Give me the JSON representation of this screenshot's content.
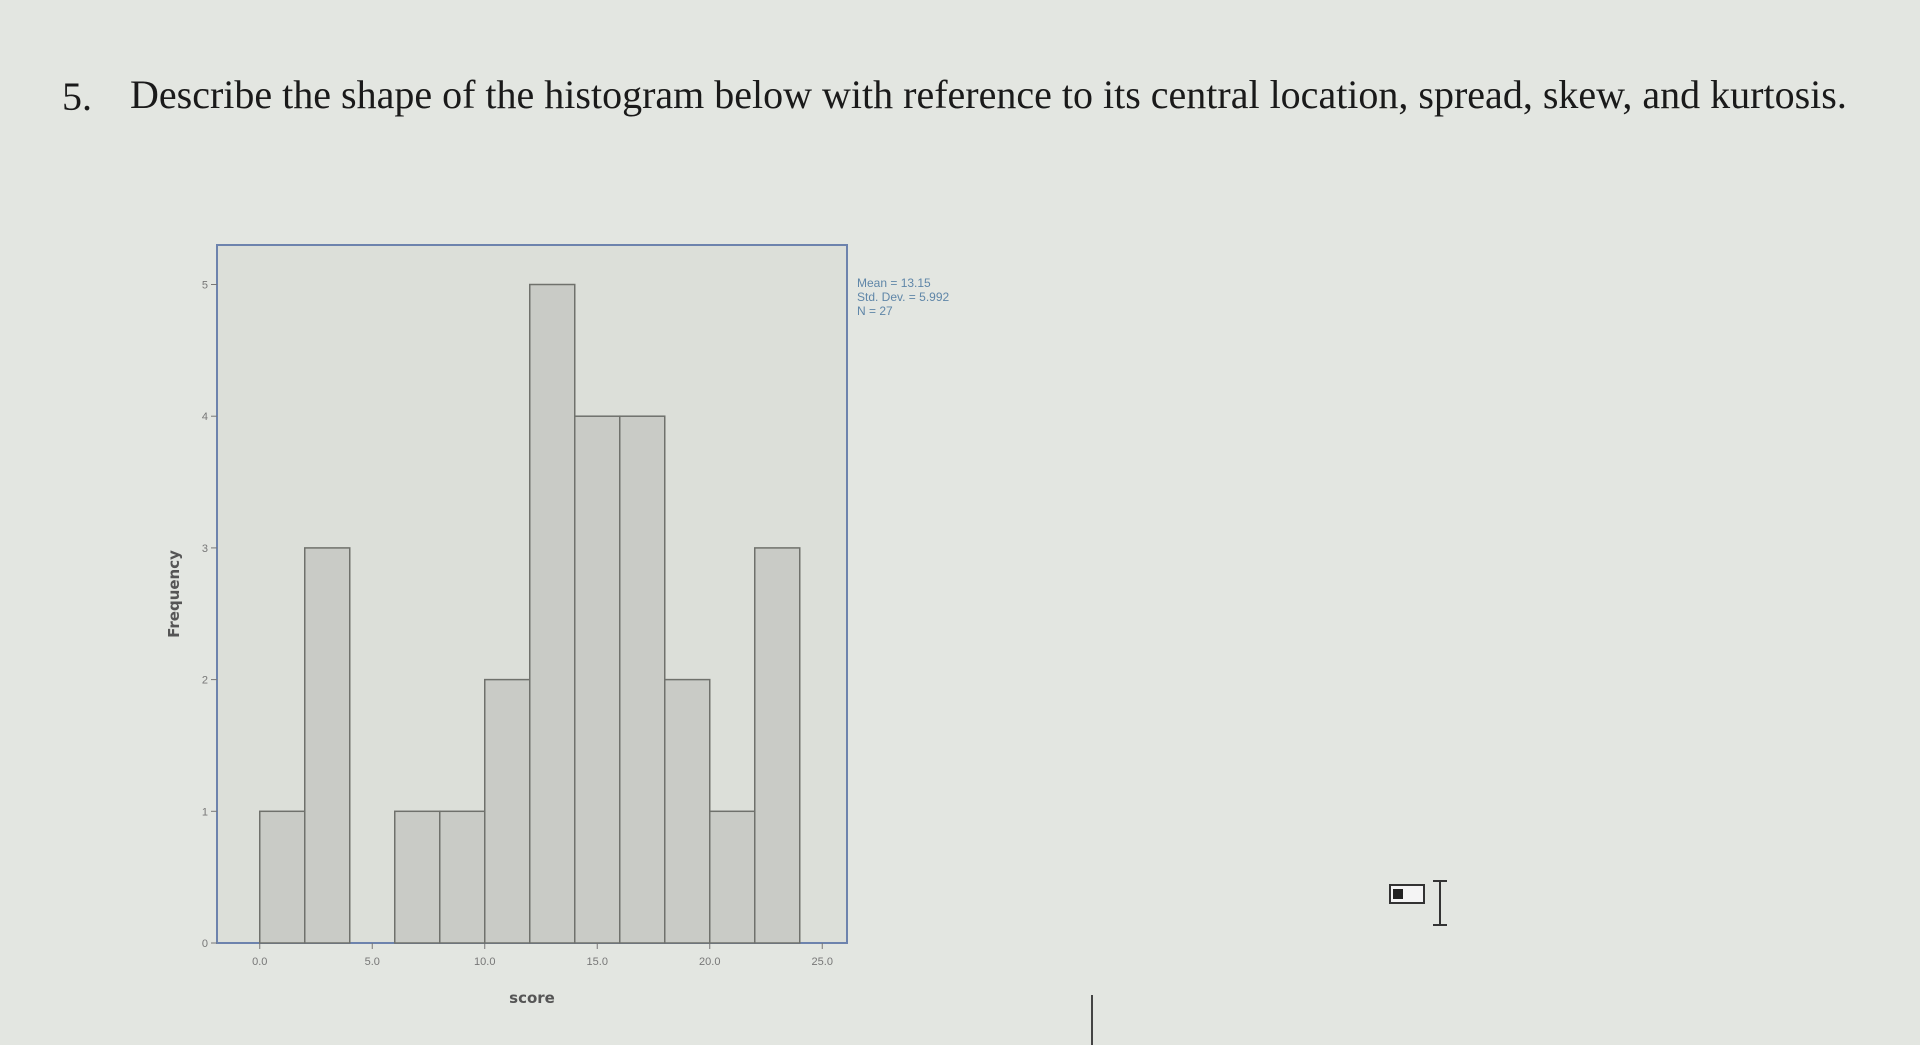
{
  "question": {
    "number": "5.",
    "text": "Describe the shape of the histogram below with reference to its central location, spread, skew, and kurtosis."
  },
  "chart_data": {
    "type": "histogram",
    "x_label": "score",
    "y_label": "Frequency",
    "annotations": [
      "Mean = 13.15",
      "Std. Dev. = 5.992",
      "N = 27"
    ],
    "bins": [
      0,
      2,
      4,
      6,
      8,
      10,
      12,
      14,
      16,
      18,
      20,
      22,
      24
    ],
    "counts": [
      1,
      3,
      0,
      1,
      1,
      2,
      5,
      4,
      4,
      2,
      1,
      3
    ],
    "color": "#c9cbc6",
    "xlim": [
      -1.9,
      26.1
    ],
    "xticks": [
      {
        "value": 0,
        "label": "0.0"
      },
      {
        "value": 5,
        "label": "5.0"
      },
      {
        "value": 10,
        "label": "10.0"
      },
      {
        "value": 15,
        "label": "15.0"
      },
      {
        "value": 20,
        "label": "20.0"
      },
      {
        "value": 25,
        "label": "25.0"
      }
    ],
    "ylim": [
      0,
      5.3
    ],
    "yticks": [
      0,
      1,
      2,
      3,
      4,
      5
    ]
  }
}
